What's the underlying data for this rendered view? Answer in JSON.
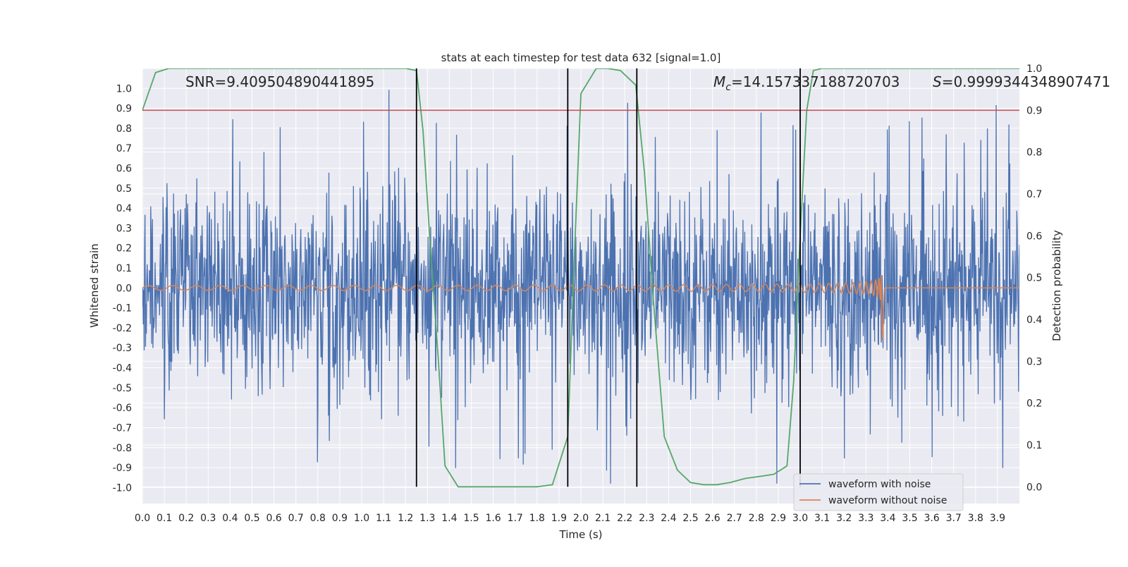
{
  "chart_data": {
    "type": "line",
    "title": "stats at each timestep for test data 632 [signal=1.0]",
    "xlabel": "Time (s)",
    "ylabel_left": "Whitened strain",
    "ylabel_right": "Detection probability",
    "xlim": [
      0.0,
      4.0
    ],
    "ylim_left": [
      -1.08,
      1.1
    ],
    "ylim_right": [
      -0.04,
      1.0
    ],
    "x_ticks": [
      "0.0",
      "0.1",
      "0.2",
      "0.3",
      "0.4",
      "0.5",
      "0.6",
      "0.7",
      "0.8",
      "0.9",
      "1.0",
      "1.1",
      "1.2",
      "1.3",
      "1.4",
      "1.5",
      "1.6",
      "1.7",
      "1.8",
      "1.9",
      "2.0",
      "2.1",
      "2.2",
      "2.3",
      "2.4",
      "2.5",
      "2.6",
      "2.7",
      "2.8",
      "2.9",
      "3.0",
      "3.1",
      "3.2",
      "3.3",
      "3.4",
      "3.5",
      "3.6",
      "3.7",
      "3.8",
      "3.9"
    ],
    "y_left_ticks": [
      "1.0",
      "0.9",
      "0.8",
      "0.7",
      "0.6",
      "0.5",
      "0.4",
      "0.3",
      "0.2",
      "0.1",
      "0.0",
      "-0.1",
      "-0.2",
      "-0.3",
      "-0.4",
      "-0.5",
      "-0.6",
      "-0.7",
      "-0.8",
      "-0.9",
      "-1.0"
    ],
    "y_right_ticks": [
      "1.0",
      "0.9",
      "0.8",
      "0.7",
      "0.6",
      "0.5",
      "0.4",
      "0.3",
      "0.2",
      "0.1",
      "0.0"
    ],
    "annotations": {
      "snr": "SNR=9.409504890441895",
      "mc_symbol": "M",
      "mc_sub": "c",
      "mc_value": "=14.157337188720703",
      "s_symbol": "S",
      "s_value": "=0.9999344348907471"
    },
    "threshold": {
      "axis": "right",
      "value": 0.9,
      "color": "#c44e52"
    },
    "vlines": [
      1.25,
      1.94,
      2.255,
      3.0
    ],
    "series": [
      {
        "name": "waveform with noise",
        "axis": "left",
        "color": "#4c72b0",
        "kind": "noise",
        "spread": 0.25,
        "min": -0.98,
        "max": 1.0,
        "samples": 2000
      },
      {
        "name": "waveform without noise",
        "axis": "left",
        "color": "#dd8452",
        "kind": "chirp",
        "merger_time": 3.37,
        "amplitude_start": 0.012,
        "amplitude_peak": 0.45,
        "freq_start": 9,
        "freq_end": 28
      },
      {
        "name": "Detection probability",
        "axis": "right",
        "color": "#55a868",
        "x": [
          0.0,
          0.06,
          0.12,
          0.25,
          0.5,
          0.75,
          1.0,
          1.2,
          1.25,
          1.28,
          1.31,
          1.35,
          1.38,
          1.44,
          1.5,
          1.6,
          1.7,
          1.8,
          1.87,
          1.94,
          1.97,
          2.0,
          2.07,
          2.12,
          2.18,
          2.25,
          2.29,
          2.33,
          2.38,
          2.44,
          2.5,
          2.56,
          2.62,
          2.68,
          2.75,
          2.82,
          2.88,
          2.94,
          2.97,
          3.0,
          3.03,
          3.06,
          3.1,
          3.2,
          3.3,
          3.4,
          3.5,
          3.6,
          3.7,
          3.8,
          3.9,
          4.0
        ],
        "values": [
          0.9,
          0.99,
          1.0,
          1.0,
          1.0,
          1.0,
          1.0,
          1.0,
          0.995,
          0.85,
          0.6,
          0.3,
          0.05,
          0.0,
          0.0,
          0.0,
          0.0,
          0.0,
          0.005,
          0.12,
          0.55,
          0.94,
          1.0,
          1.0,
          0.995,
          0.96,
          0.75,
          0.45,
          0.12,
          0.04,
          0.01,
          0.005,
          0.005,
          0.01,
          0.02,
          0.025,
          0.03,
          0.05,
          0.25,
          0.6,
          0.9,
          0.995,
          1.0,
          1.0,
          1.0,
          1.0,
          1.0,
          1.0,
          1.0,
          1.0,
          1.0,
          1.0
        ]
      }
    ],
    "legend": [
      "waveform with noise",
      "waveform without noise"
    ],
    "legend_position": "lower-right",
    "grid": true
  }
}
